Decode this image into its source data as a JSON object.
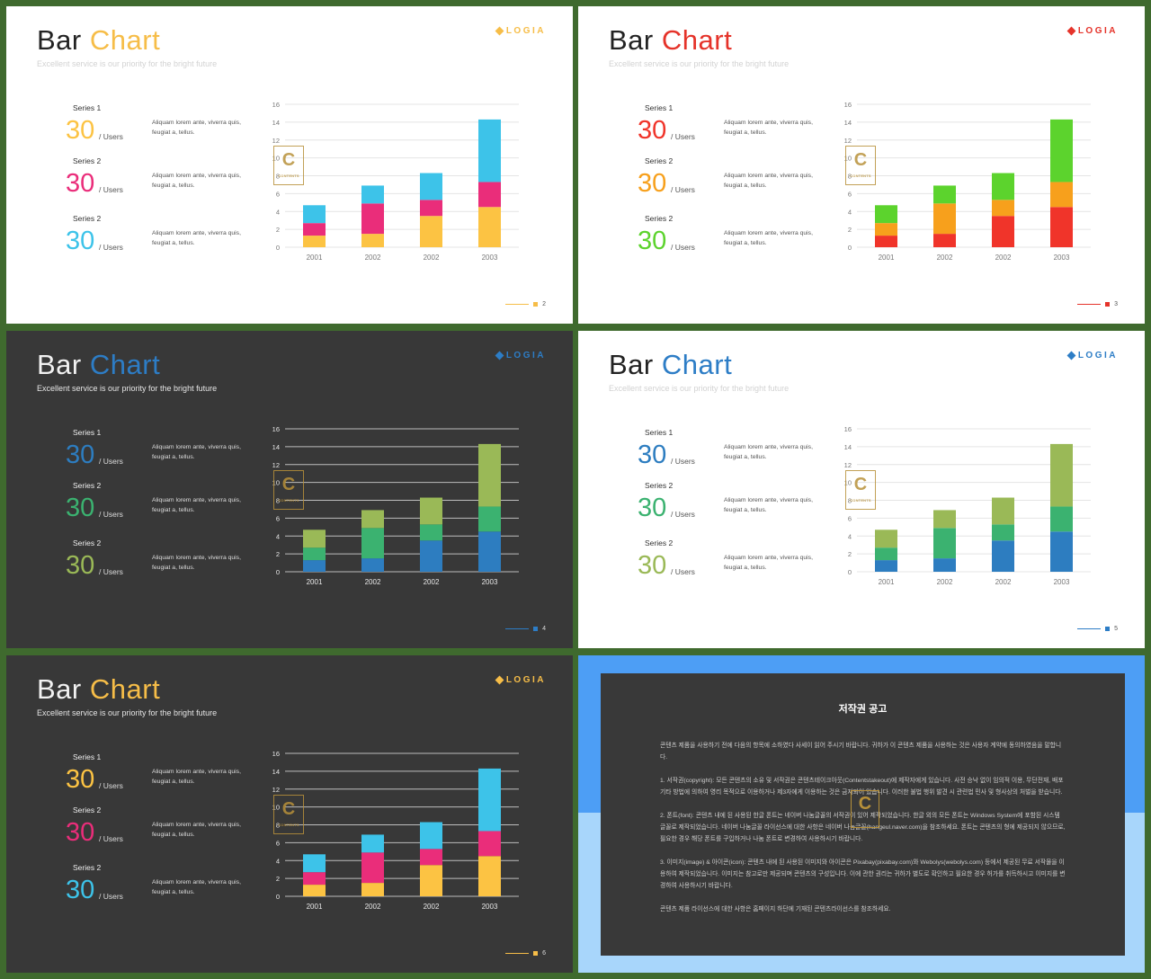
{
  "slides": [
    {
      "theme": "light",
      "title_word1": "Bar",
      "title_word2": "Chart",
      "subtitle": "Excellent service is our priority for the bright future",
      "logo": "LOGIA",
      "accent": "#f6bd48",
      "page": "2",
      "colors": [
        "#fcc343",
        "#ea2d7a",
        "#3dc3e9"
      ],
      "series": [
        {
          "label": "Series 1",
          "value": "30",
          "unit": "/ Users",
          "desc": "Aliquam lorem ante, viverra quis, feugiat a, tellus."
        },
        {
          "label": "Series 2",
          "value": "30",
          "unit": "/ Users",
          "desc": "Aliquam lorem ante, viverra quis, feugiat a, tellus."
        },
        {
          "label": "Series 2",
          "value": "30",
          "unit": "/ Users",
          "desc": "Aliquam lorem ante, viverra quis, feugiat a, tellus."
        }
      ]
    },
    {
      "theme": "light",
      "title_word1": "Bar",
      "title_word2": "Chart",
      "subtitle": "Excellent service is our priority for the bright future",
      "logo": "LOGIA",
      "accent": "#e5332a",
      "page": "3",
      "colors": [
        "#f0342a",
        "#f7a01c",
        "#5cd32d"
      ],
      "series": [
        {
          "label": "Series 1",
          "value": "30",
          "unit": "/ Users",
          "desc": "Aliquam lorem ante, viverra quis, feugiat a, tellus."
        },
        {
          "label": "Series 2",
          "value": "30",
          "unit": "/ Users",
          "desc": "Aliquam lorem ante, viverra quis, feugiat a, tellus."
        },
        {
          "label": "Series 2",
          "value": "30",
          "unit": "/ Users",
          "desc": "Aliquam lorem ante, viverra quis, feugiat a, tellus."
        }
      ]
    },
    {
      "theme": "dark",
      "title_word1": "Bar",
      "title_word2": "Chart",
      "subtitle": "Excellent service is our priority for the bright future",
      "logo": "LOGIA",
      "accent": "#2d7dc6",
      "page": "4",
      "colors": [
        "#2d7dc0",
        "#3bb270",
        "#9ab957"
      ],
      "series": [
        {
          "label": "Series 1",
          "value": "30",
          "unit": "/ Users",
          "desc": "Aliquam lorem ante, viverra quis, feugiat a, tellus."
        },
        {
          "label": "Series 2",
          "value": "30",
          "unit": "/ Users",
          "desc": "Aliquam lorem ante, viverra quis, feugiat a, tellus."
        },
        {
          "label": "Series 2",
          "value": "30",
          "unit": "/ Users",
          "desc": "Aliquam lorem ante, viverra quis, feugiat a, tellus."
        }
      ]
    },
    {
      "theme": "light",
      "title_word1": "Bar",
      "title_word2": "Chart",
      "subtitle": "Excellent service is our priority for the bright future",
      "logo": "LOGIA",
      "accent": "#2d7dc6",
      "page": "5",
      "colors": [
        "#2d7dc0",
        "#3bb270",
        "#9ab957"
      ],
      "series": [
        {
          "label": "Series 1",
          "value": "30",
          "unit": "/ Users",
          "desc": "Aliquam lorem ante, viverra quis, feugiat a, tellus."
        },
        {
          "label": "Series 2",
          "value": "30",
          "unit": "/ Users",
          "desc": "Aliquam lorem ante, viverra quis, feugiat a, tellus."
        },
        {
          "label": "Series 2",
          "value": "30",
          "unit": "/ Users",
          "desc": "Aliquam lorem ante, viverra quis, feugiat a, tellus."
        }
      ]
    },
    {
      "theme": "dark",
      "title_word1": "Bar",
      "title_word2": "Chart",
      "subtitle": "Excellent service is our priority for the bright future",
      "logo": "LOGIA",
      "accent": "#f6bd48",
      "page": "6",
      "colors": [
        "#fcc343",
        "#ea2d7a",
        "#3dc3e9"
      ],
      "series": [
        {
          "label": "Series 1",
          "value": "30",
          "unit": "/ Users",
          "desc": "Aliquam lorem ante, viverra quis, feugiat a, tellus."
        },
        {
          "label": "Series 2",
          "value": "30",
          "unit": "/ Users",
          "desc": "Aliquam lorem ante, viverra quis, feugiat a, tellus."
        },
        {
          "label": "Series 2",
          "value": "30",
          "unit": "/ Users",
          "desc": "Aliquam lorem ante, viverra quis, feugiat a, tellus."
        }
      ]
    }
  ],
  "chart_data": {
    "type": "bar",
    "stacked": true,
    "categories": [
      "2001",
      "2002",
      "2002",
      "2003"
    ],
    "series": [
      {
        "values": [
          1.3,
          1.5,
          3.5,
          4.5
        ]
      },
      {
        "values": [
          1.4,
          3.4,
          1.8,
          2.8
        ]
      },
      {
        "values": [
          2.0,
          2.0,
          3.0,
          7.0
        ]
      }
    ],
    "ylim": [
      0,
      16
    ],
    "yticks": [
      "0",
      "2",
      "4",
      "6",
      "8",
      "10",
      "12",
      "14",
      "16"
    ],
    "grid": true
  },
  "watermark": {
    "letter": "C",
    "text": "CONTENTS"
  },
  "notice": {
    "title": "저작권 공고",
    "paragraphs": [
      "콘텐츠 제품을 사용하기 전에 다음의 항목에 소하였다 사세이 읽어 주시기 바랍니다. 귀하가 이 콘텐츠 제품을 사용하는 것은 사용자 계약에 동의하였음을 말합니다.",
      "1. 서작권(copyright): 모든 콘텐츠의 소유 및 서작권은 콘텐츠테이크아웃(Contentstakeout)에 제작자에게 있습니다. 사전 승낙 없이 임의적 이용, 무단전재, 배포 기타 방법에 의하여 영리 목적으로 이용하거나 제3자에게 이용하는 것은 금지되어 있습니다. 이러한 불법 행위 발견 시 관련법 민사 및 형사상의 처벌을 받습니다.",
      "2. 폰트(font): 콘텐츠 내에 된 사용된 한글 폰트는 네이버 나눔글꼴의 서작권이 있어 제작되었습니다. 한글 외의 모든 폰트는 Windows System에 포함된 시스템 글꼴로 제작되었습니다. 네이버 나눔글꼴 라이선스에 대한 사항은 네이버 나눔글꼴(hangeul.naver.com)을 참조하세요. 폰트는 콘텐츠의 형에 제공되지 않으므로, 필요한 경우 해당 폰트를 구입하거나 나눔 폰트로 변경하여 사용하시기 바랍니다.",
      "3. 이미지(image) & 아이콘(icon): 콘텐츠 내에 된 사용된 이미지와 아이콘은 Pixabay(pixabay.com)와 Webolys(webolys.com) 등에서 제공된 무료 서작물을 이용하여 제작되었습니다. 이미지는 참고로만 제공되며 콘텐츠의 구성입니다. 이에 관한 권리는 귀하가 별도로 확인하고 필요한 경우 허가를 취득하시고 이미지를 변경하여 사용하시기 바랍니다.",
      "콘텐츠 제품 라이선스에 대한 사항은 홈페이지 하단에 기재된 콘텐츠라이선스를 참조하세요."
    ]
  }
}
